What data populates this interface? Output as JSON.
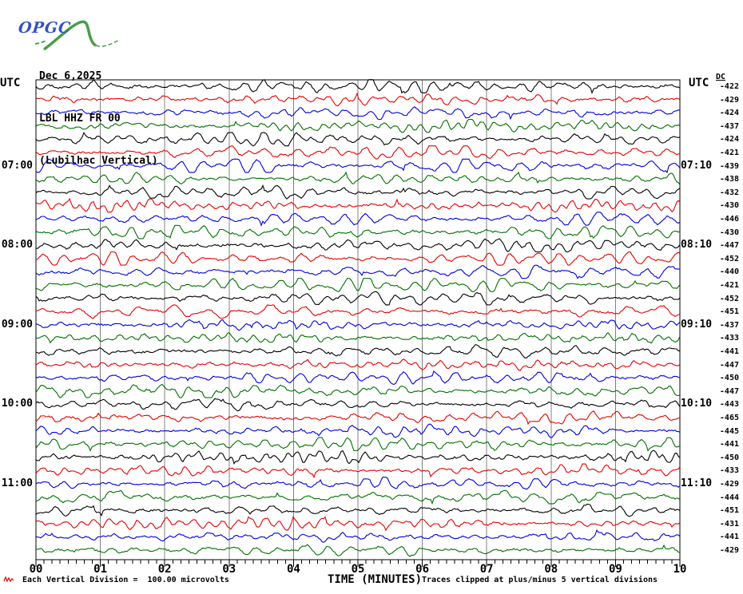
{
  "logo": {
    "text": "OPGC"
  },
  "header": {
    "date": "Dec 6,2025",
    "station": "LBL HHZ FR 00",
    "description": "(Lubilhac Vertical)"
  },
  "left_axis": {
    "title": "UTC",
    "labels": [
      {
        "text": "07:00",
        "row": 6
      },
      {
        "text": "08:00",
        "row": 12
      },
      {
        "text": "09:00",
        "row": 18
      },
      {
        "text": "10:00",
        "row": 24
      },
      {
        "text": "11:00",
        "row": 30
      }
    ]
  },
  "right_axis": {
    "title": "UTC",
    "dc_header": "DC",
    "labels": [
      {
        "text": "07:10",
        "row": 6
      },
      {
        "text": "08:10",
        "row": 12
      },
      {
        "text": "09:10",
        "row": 18
      },
      {
        "text": "10:10",
        "row": 24
      },
      {
        "text": "11:10",
        "row": 30
      }
    ],
    "dc_values": [
      -422,
      -429,
      -424,
      -437,
      -424,
      -421,
      -439,
      -438,
      -432,
      -430,
      -446,
      -430,
      -447,
      -452,
      -440,
      -421,
      -452,
      -451,
      -437,
      -433,
      -441,
      -447,
      -450,
      -447,
      -443,
      -465,
      -445,
      -441,
      -450,
      -433,
      -429,
      -444,
      -451,
      -431,
      -441,
      -429
    ]
  },
  "x_axis": {
    "labels": [
      "00",
      "01",
      "02",
      "03",
      "04",
      "05",
      "06",
      "07",
      "08",
      "09",
      "10"
    ],
    "title": "TIME (MINUTES)"
  },
  "footer": {
    "scale_note": "Each Vertical Division =  100.00 microvolts",
    "clip_note": "Traces clipped at plus/minus 5 vertical divisions"
  },
  "colors": {
    "trace_cycle": [
      "#000000",
      "#e60000",
      "#0000dd",
      "#007000"
    ],
    "grid": "#808080",
    "axis": "#000000",
    "scale_mark": "#e60000",
    "logo_green": "#4a9e4a",
    "logo_blue": "#3353c4"
  },
  "chart_data": {
    "type": "line",
    "title": "LBL HHZ FR 00 (Lubilhac Vertical) Dec 6,2025",
    "xlabel": "TIME (MINUTES)",
    "x_range_minutes": [
      0,
      10
    ],
    "x_ticks": [
      "00",
      "01",
      "02",
      "03",
      "04",
      "05",
      "06",
      "07",
      "08",
      "09",
      "10"
    ],
    "trace_count": 36,
    "minutes_per_trace": 10,
    "trace_color_cycle": [
      "black",
      "red",
      "blue",
      "green"
    ],
    "left_hour_labels": [
      "07:00",
      "08:00",
      "09:00",
      "10:00",
      "11:00"
    ],
    "right_hour_labels": [
      "07:10",
      "08:10",
      "09:10",
      "10:10",
      "11:10"
    ],
    "series": [
      {
        "name": "DC offset per trace (microvolts column 'DC')",
        "values": [
          -422,
          -429,
          -424,
          -437,
          -424,
          -421,
          -439,
          -438,
          -432,
          -430,
          -446,
          -430,
          -447,
          -452,
          -440,
          -421,
          -452,
          -451,
          -437,
          -433,
          -441,
          -447,
          -450,
          -447,
          -443,
          -465,
          -445,
          -441,
          -450,
          -433,
          -429,
          -444,
          -451,
          -431,
          -441,
          -429
        ]
      }
    ],
    "scale_note": "Each Vertical Division =  100.00 microvolts",
    "clip_note": "Traces clipped at plus/minus 5 vertical divisions",
    "grid": "vertical lines at each minute",
    "legend_position": "none"
  }
}
